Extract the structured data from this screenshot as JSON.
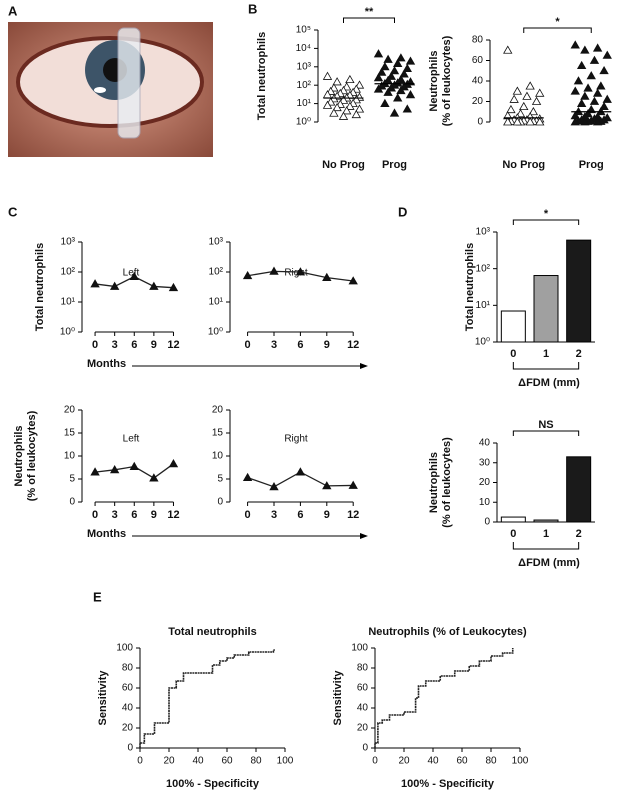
{
  "panel_labels": [
    "A",
    "B",
    "C",
    "D",
    "E"
  ],
  "chart_data": [
    {
      "type": "strip",
      "ylabel": [
        "Total neutrophils"
      ],
      "categories": [
        "No Prog",
        "Prog"
      ],
      "groups": [
        [
          300,
          200,
          150,
          100,
          80,
          70,
          60,
          50,
          45,
          40,
          35,
          30,
          28,
          25,
          22,
          20,
          18,
          16,
          15,
          12,
          10,
          9,
          8,
          7,
          6,
          5,
          4,
          3,
          2.5,
          2
        ],
        [
          5000,
          3000,
          2500,
          2000,
          1500,
          1000,
          800,
          600,
          500,
          400,
          300,
          250,
          200,
          180,
          150,
          130,
          120,
          110,
          100,
          90,
          80,
          70,
          60,
          50,
          40,
          30,
          20,
          10,
          5,
          3
        ]
      ],
      "medians": [
        20,
        120
      ],
      "markers": [
        "open",
        "filled"
      ],
      "yscale": "log",
      "ylim": [
        1,
        100000
      ],
      "yticks": [
        {
          "value": 1,
          "label": "10⁰"
        },
        {
          "value": 10,
          "label": "10¹"
        },
        {
          "value": 100,
          "label": "10²"
        },
        {
          "value": 1000,
          "label": "10³"
        },
        {
          "value": 10000,
          "label": "10⁴"
        },
        {
          "value": 100000,
          "label": "10⁵"
        }
      ],
      "significance": "**"
    },
    {
      "type": "strip",
      "ylabel": [
        "Neutrophils",
        "(% of leukocytes)"
      ],
      "categories": [
        "No Prog",
        "Prog"
      ],
      "groups": [
        [
          70,
          35,
          30,
          28,
          25,
          22,
          20,
          15,
          12,
          10,
          8,
          6,
          5,
          4,
          3,
          2,
          2,
          1,
          1,
          0.5,
          0.5,
          0,
          0,
          0,
          0,
          0
        ],
        [
          75,
          72,
          70,
          65,
          60,
          55,
          50,
          45,
          40,
          35,
          33,
          30,
          28,
          25,
          22,
          20,
          18,
          15,
          12,
          10,
          10,
          8,
          6,
          5,
          5,
          4,
          3,
          2,
          2,
          1,
          1,
          0.5,
          0.5,
          0,
          0,
          0
        ]
      ],
      "medians": [
        4,
        10
      ],
      "markers": [
        "open",
        "filled"
      ],
      "ylim": [
        0,
        80
      ],
      "yticks": [
        0,
        20,
        40,
        60,
        80
      ],
      "significance": "*"
    },
    {
      "type": "line",
      "title": "Left",
      "ylabel": [
        "Total neutrophils"
      ],
      "x_label": "Months",
      "marker": "triangle",
      "x": [
        0,
        3,
        6,
        9,
        12
      ],
      "values": [
        40,
        33,
        70,
        33,
        30
      ],
      "xlim": [
        -2,
        13
      ],
      "xticks": [
        0,
        3,
        6,
        9,
        12
      ],
      "yscale": "log",
      "ylim": [
        1,
        1000
      ],
      "yticks": [
        {
          "value": 1,
          "label": "10⁰"
        },
        {
          "value": 10,
          "label": "10¹"
        },
        {
          "value": 100,
          "label": "10²"
        },
        {
          "value": 1000,
          "label": "10³"
        }
      ]
    },
    {
      "type": "line",
      "title": "Right",
      "marker": "triangle",
      "x": [
        0,
        3,
        6,
        9,
        12
      ],
      "values": [
        75,
        105,
        100,
        65,
        50
      ],
      "xlim": [
        -2,
        13
      ],
      "xticks": [
        0,
        3,
        6,
        9,
        12
      ],
      "yscale": "log",
      "ylim": [
        1,
        1000
      ],
      "yticks": [
        {
          "value": 1,
          "label": "10⁰"
        },
        {
          "value": 10,
          "label": "10¹"
        },
        {
          "value": 100,
          "label": "10²"
        },
        {
          "value": 1000,
          "label": "10³"
        }
      ]
    },
    {
      "type": "line",
      "title": "Left",
      "ylabel": [
        "Neutrophils",
        "(% of leukocytes)"
      ],
      "x_label": "Months",
      "marker": "triangle",
      "x": [
        0,
        3,
        6,
        9,
        12
      ],
      "values": [
        6.5,
        7,
        7.7,
        5.2,
        8.3
      ],
      "xlim": [
        -2,
        13
      ],
      "xticks": [
        0,
        3,
        6,
        9,
        12
      ],
      "ylim": [
        0,
        20
      ],
      "yticks": [
        0,
        5,
        10,
        15,
        20
      ]
    },
    {
      "type": "line",
      "title": "Right",
      "marker": "triangle",
      "x": [
        0,
        3,
        6,
        9,
        12
      ],
      "values": [
        5.3,
        3.3,
        6.5,
        3.5,
        3.6
      ],
      "xlim": [
        -2,
        13
      ],
      "xticks": [
        0,
        3,
        6,
        9,
        12
      ],
      "ylim": [
        0,
        20
      ],
      "yticks": [
        0,
        5,
        10,
        15,
        20
      ]
    },
    {
      "type": "bar",
      "ylabel": [
        "Total neutrophils"
      ],
      "x_label": "ΔFDM (mm)",
      "categories": [
        "0",
        "1",
        "2"
      ],
      "values": [
        7,
        65,
        600
      ],
      "colors": [
        "#ffffff",
        "#a0a0a0",
        "#1a1a1a"
      ],
      "yscale": "log",
      "ylim": [
        1,
        1000
      ],
      "yticks": [
        {
          "value": 1,
          "label": "10⁰"
        },
        {
          "value": 10,
          "label": "10¹"
        },
        {
          "value": 100,
          "label": "10²"
        },
        {
          "value": 1000,
          "label": "10³"
        }
      ],
      "significance": "*"
    },
    {
      "type": "bar",
      "ylabel": [
        "Neutrophils",
        "(% of leukocytes)"
      ],
      "x_label": "ΔFDM (mm)",
      "categories": [
        "0",
        "1",
        "2"
      ],
      "values": [
        2.5,
        1,
        33
      ],
      "colors": [
        "#ffffff",
        "#a0a0a0",
        "#1a1a1a"
      ],
      "ylim": [
        0,
        40
      ],
      "yticks": [
        0,
        10,
        20,
        30,
        40
      ],
      "significance": "NS"
    },
    {
      "type": "line",
      "title": "Total neutrophils",
      "ylabel": [
        "Sensitivity"
      ],
      "x_label": "100% - Specificity",
      "x": [
        0,
        0,
        3,
        3,
        10,
        10,
        20,
        20,
        25,
        25,
        30,
        30,
        50,
        50,
        55,
        55,
        60,
        60,
        65,
        65,
        75,
        75,
        92,
        92,
        93
      ],
      "values": [
        0,
        5,
        5,
        14,
        14,
        25,
        25,
        60,
        60,
        67,
        67,
        75,
        75,
        83,
        83,
        87,
        87,
        90,
        90,
        93,
        93,
        96,
        96,
        98,
        98
      ],
      "xlim": [
        0,
        100
      ],
      "xticks": [
        0,
        20,
        40,
        60,
        80,
        100
      ],
      "ylim": [
        0,
        100
      ],
      "yticks": [
        0,
        20,
        40,
        60,
        80,
        100
      ]
    },
    {
      "type": "line",
      "title": "Neutrophils (% of Leukocytes)",
      "ylabel": [
        "Sensitivity"
      ],
      "x_label": "100% - Specificity",
      "x": [
        0,
        0,
        2,
        2,
        5,
        5,
        10,
        10,
        20,
        20,
        28,
        28,
        30,
        30,
        35,
        35,
        45,
        45,
        55,
        55,
        65,
        65,
        72,
        72,
        80,
        80,
        88,
        88,
        95,
        95
      ],
      "values": [
        0,
        5,
        5,
        25,
        25,
        28,
        28,
        33,
        33,
        36,
        36,
        50,
        50,
        62,
        62,
        67,
        67,
        72,
        72,
        77,
        77,
        82,
        82,
        87,
        87,
        92,
        92,
        95,
        95,
        100
      ],
      "xlim": [
        0,
        100
      ],
      "xticks": [
        0,
        20,
        40,
        60,
        80,
        100
      ],
      "ylim": [
        0,
        100
      ],
      "yticks": [
        0,
        20,
        40,
        60,
        80,
        100
      ]
    }
  ]
}
